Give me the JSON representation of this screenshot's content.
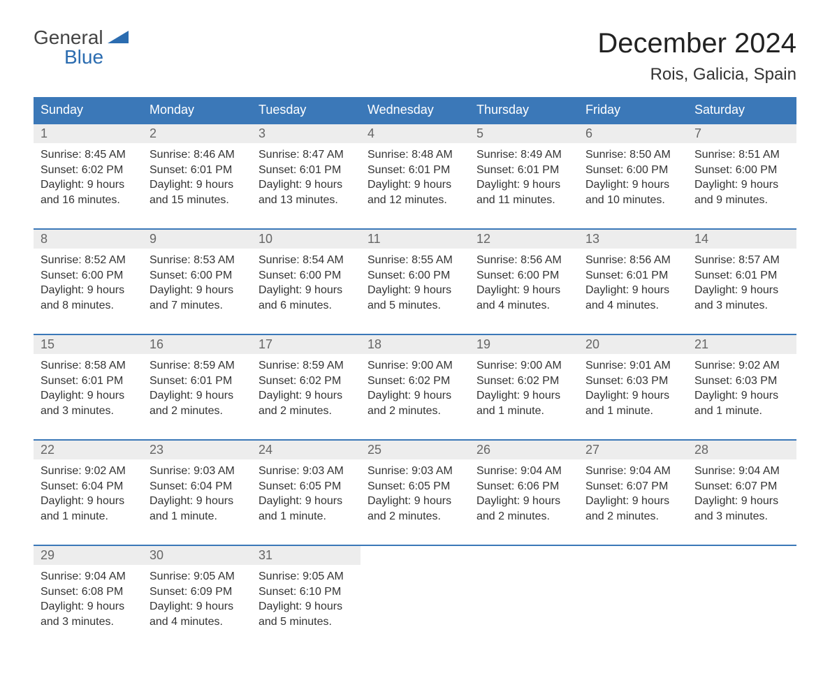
{
  "brand": {
    "first": "General",
    "second": "Blue"
  },
  "title": "December 2024",
  "location": "Rois, Galicia, Spain",
  "colors": {
    "header_bg": "#3b78b8",
    "header_text": "#ffffff",
    "week_border": "#3b78b8",
    "daynum_bg": "#ededed",
    "daynum_text": "#666666",
    "body_text": "#333333",
    "logo_accent": "#2b6cb0"
  },
  "dayNames": [
    "Sunday",
    "Monday",
    "Tuesday",
    "Wednesday",
    "Thursday",
    "Friday",
    "Saturday"
  ],
  "weeks": [
    [
      {
        "n": "1",
        "sunrise": "8:45 AM",
        "sunset": "6:02 PM",
        "daylight": "9 hours and 16 minutes."
      },
      {
        "n": "2",
        "sunrise": "8:46 AM",
        "sunset": "6:01 PM",
        "daylight": "9 hours and 15 minutes."
      },
      {
        "n": "3",
        "sunrise": "8:47 AM",
        "sunset": "6:01 PM",
        "daylight": "9 hours and 13 minutes."
      },
      {
        "n": "4",
        "sunrise": "8:48 AM",
        "sunset": "6:01 PM",
        "daylight": "9 hours and 12 minutes."
      },
      {
        "n": "5",
        "sunrise": "8:49 AM",
        "sunset": "6:01 PM",
        "daylight": "9 hours and 11 minutes."
      },
      {
        "n": "6",
        "sunrise": "8:50 AM",
        "sunset": "6:00 PM",
        "daylight": "9 hours and 10 minutes."
      },
      {
        "n": "7",
        "sunrise": "8:51 AM",
        "sunset": "6:00 PM",
        "daylight": "9 hours and 9 minutes."
      }
    ],
    [
      {
        "n": "8",
        "sunrise": "8:52 AM",
        "sunset": "6:00 PM",
        "daylight": "9 hours and 8 minutes."
      },
      {
        "n": "9",
        "sunrise": "8:53 AM",
        "sunset": "6:00 PM",
        "daylight": "9 hours and 7 minutes."
      },
      {
        "n": "10",
        "sunrise": "8:54 AM",
        "sunset": "6:00 PM",
        "daylight": "9 hours and 6 minutes."
      },
      {
        "n": "11",
        "sunrise": "8:55 AM",
        "sunset": "6:00 PM",
        "daylight": "9 hours and 5 minutes."
      },
      {
        "n": "12",
        "sunrise": "8:56 AM",
        "sunset": "6:00 PM",
        "daylight": "9 hours and 4 minutes."
      },
      {
        "n": "13",
        "sunrise": "8:56 AM",
        "sunset": "6:01 PM",
        "daylight": "9 hours and 4 minutes."
      },
      {
        "n": "14",
        "sunrise": "8:57 AM",
        "sunset": "6:01 PM",
        "daylight": "9 hours and 3 minutes."
      }
    ],
    [
      {
        "n": "15",
        "sunrise": "8:58 AM",
        "sunset": "6:01 PM",
        "daylight": "9 hours and 3 minutes."
      },
      {
        "n": "16",
        "sunrise": "8:59 AM",
        "sunset": "6:01 PM",
        "daylight": "9 hours and 2 minutes."
      },
      {
        "n": "17",
        "sunrise": "8:59 AM",
        "sunset": "6:02 PM",
        "daylight": "9 hours and 2 minutes."
      },
      {
        "n": "18",
        "sunrise": "9:00 AM",
        "sunset": "6:02 PM",
        "daylight": "9 hours and 2 minutes."
      },
      {
        "n": "19",
        "sunrise": "9:00 AM",
        "sunset": "6:02 PM",
        "daylight": "9 hours and 1 minute."
      },
      {
        "n": "20",
        "sunrise": "9:01 AM",
        "sunset": "6:03 PM",
        "daylight": "9 hours and 1 minute."
      },
      {
        "n": "21",
        "sunrise": "9:02 AM",
        "sunset": "6:03 PM",
        "daylight": "9 hours and 1 minute."
      }
    ],
    [
      {
        "n": "22",
        "sunrise": "9:02 AM",
        "sunset": "6:04 PM",
        "daylight": "9 hours and 1 minute."
      },
      {
        "n": "23",
        "sunrise": "9:03 AM",
        "sunset": "6:04 PM",
        "daylight": "9 hours and 1 minute."
      },
      {
        "n": "24",
        "sunrise": "9:03 AM",
        "sunset": "6:05 PM",
        "daylight": "9 hours and 1 minute."
      },
      {
        "n": "25",
        "sunrise": "9:03 AM",
        "sunset": "6:05 PM",
        "daylight": "9 hours and 2 minutes."
      },
      {
        "n": "26",
        "sunrise": "9:04 AM",
        "sunset": "6:06 PM",
        "daylight": "9 hours and 2 minutes."
      },
      {
        "n": "27",
        "sunrise": "9:04 AM",
        "sunset": "6:07 PM",
        "daylight": "9 hours and 2 minutes."
      },
      {
        "n": "28",
        "sunrise": "9:04 AM",
        "sunset": "6:07 PM",
        "daylight": "9 hours and 3 minutes."
      }
    ],
    [
      {
        "n": "29",
        "sunrise": "9:04 AM",
        "sunset": "6:08 PM",
        "daylight": "9 hours and 3 minutes."
      },
      {
        "n": "30",
        "sunrise": "9:05 AM",
        "sunset": "6:09 PM",
        "daylight": "9 hours and 4 minutes."
      },
      {
        "n": "31",
        "sunrise": "9:05 AM",
        "sunset": "6:10 PM",
        "daylight": "9 hours and 5 minutes."
      },
      null,
      null,
      null,
      null
    ]
  ],
  "labels": {
    "sunrise": "Sunrise:",
    "sunset": "Sunset:",
    "daylight": "Daylight:"
  }
}
